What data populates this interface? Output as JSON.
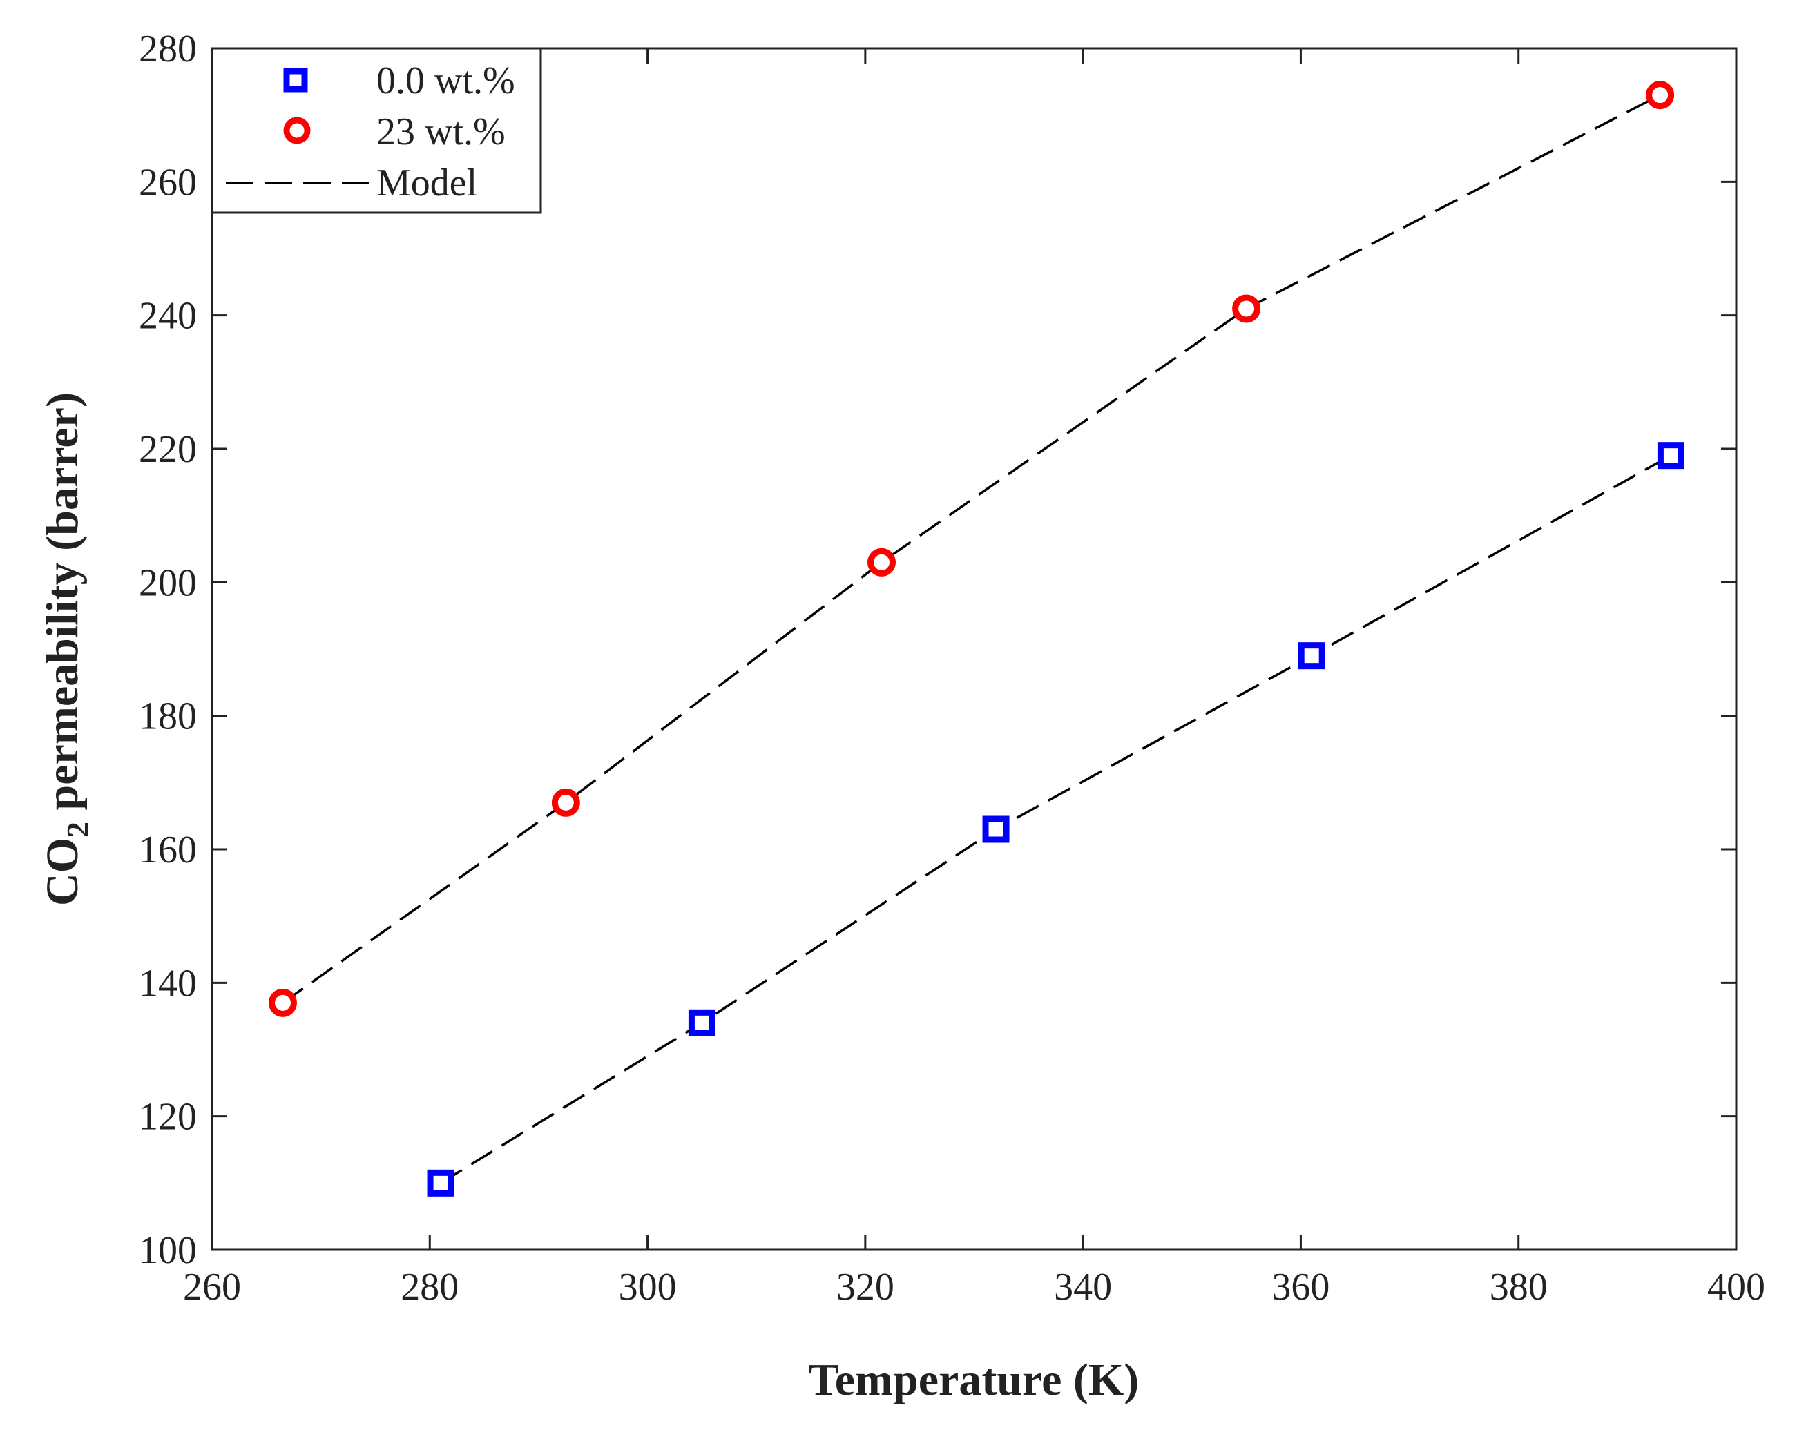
{
  "chart_data": {
    "type": "scatter",
    "xlabel": "Temperature (K)",
    "ylabel_main": "CO",
    "ylabel_sub": "2",
    "ylabel_rest": " permeability (barrer)",
    "xlim": [
      260,
      400
    ],
    "ylim": [
      100,
      280
    ],
    "xticks": [
      260,
      280,
      300,
      320,
      340,
      360,
      380,
      400
    ],
    "yticks": [
      100,
      120,
      140,
      160,
      180,
      200,
      220,
      240,
      260,
      280
    ],
    "grid": false,
    "legend_position": "top-left",
    "series": [
      {
        "name": "0.0 wt.%",
        "marker": "square",
        "color": "#0000ff",
        "x": [
          281,
          305,
          332,
          361,
          394
        ],
        "y": [
          110,
          134,
          163,
          189,
          219
        ]
      },
      {
        "name": "23 wt.%",
        "marker": "circle",
        "color": "#ff0000",
        "x": [
          266.5,
          292.5,
          321.5,
          355,
          393
        ],
        "y": [
          137,
          167,
          203,
          241,
          273
        ]
      }
    ],
    "model": {
      "name": "Model",
      "style": "dashed",
      "color": "#000000",
      "lines": [
        {
          "x": [
            281,
            305,
            332,
            361,
            394
          ],
          "y": [
            110,
            134,
            163,
            189,
            219
          ]
        },
        {
          "x": [
            266.5,
            292.5,
            321.5,
            355,
            393
          ],
          "y": [
            137,
            167,
            203,
            241,
            273
          ]
        }
      ]
    }
  }
}
